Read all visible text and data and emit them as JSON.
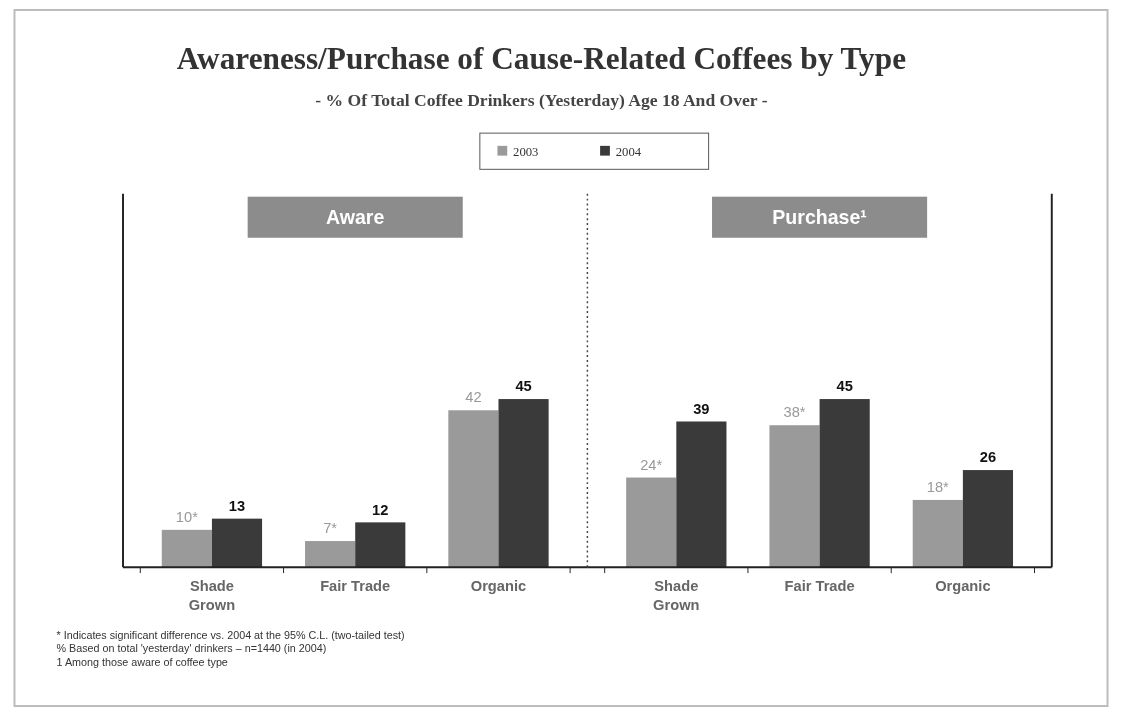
{
  "chart_data": [
    {
      "type": "bar",
      "title": "Aware",
      "categories": [
        "Shade Grown",
        "Fair Trade",
        "Organic"
      ],
      "legend": "top",
      "series": [
        {
          "name": "2003",
          "color": "#9a9a9a",
          "values": [
            10,
            7,
            42
          ],
          "value_labels": [
            "10*",
            "7*",
            "42"
          ]
        },
        {
          "name": "2004",
          "color": "#3a3a3a",
          "values": [
            13,
            12,
            45
          ],
          "value_labels": [
            "13",
            "12",
            "45"
          ]
        }
      ],
      "annotations": [
        "Awareness/Purchase of Cause-Related Coffees by Type",
        "- % Of Total Coffee Drinkers (Yesterday) Age 18 And Over -",
        "* Indicates significant difference vs. 2004 at the 95% C.L. (two-tailed test)",
        "% Based on total 'yesterday' drinkers – n=1440 (in 2004)",
        "1 Among those aware of coffee type"
      ]
    },
    {
      "type": "bar",
      "title": "Purchase¹",
      "categories": [
        "Shade Grown",
        "Fair Trade",
        "Organic"
      ],
      "series": [
        {
          "color": "#9a9a9a",
          "values": [
            24,
            38,
            18
          ],
          "value_labels": [
            "24*",
            "38*",
            "18*"
          ]
        },
        {
          "color": "#3a3a3a",
          "values": [
            39,
            45,
            26
          ],
          "value_labels": [
            "39",
            "45",
            "26"
          ]
        }
      ]
    }
  ]
}
